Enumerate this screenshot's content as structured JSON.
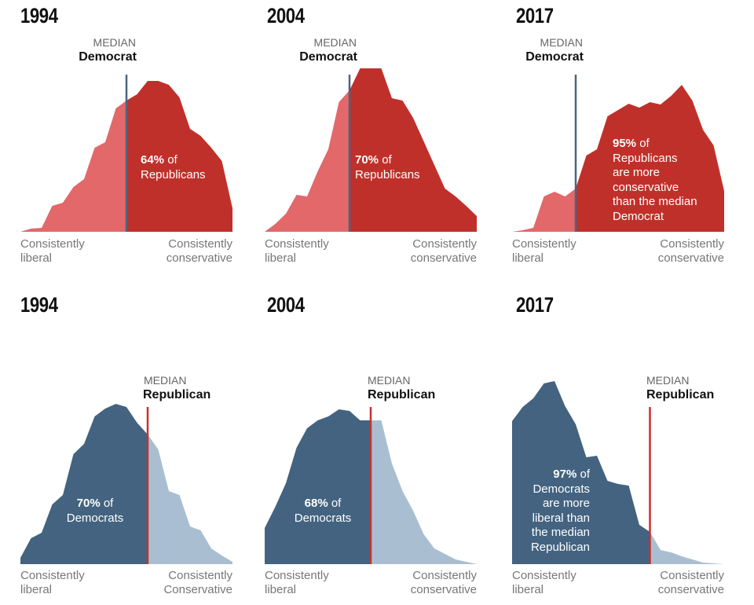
{
  "colors": {
    "rep_dark": "#c0302a",
    "rep_light": "#e2686a",
    "dem_dark": "#436380",
    "dem_light": "#a9bfd1",
    "median_dem_line": "#4a6580",
    "median_rep_line": "#c8312e"
  },
  "chart_data": [
    {
      "type": "area",
      "title": "1994",
      "group": "Republicans",
      "median_label": "MEDIAN",
      "median_party": "Democrat",
      "median_x": 0,
      "x": [
        -10,
        -9,
        -8,
        -7,
        -6,
        -5,
        -4,
        -3,
        -2,
        -1,
        0,
        1,
        2,
        3,
        4,
        5,
        6,
        7,
        8,
        9,
        10
      ],
      "y": [
        0,
        2,
        2.5,
        16.5,
        18.5,
        28.5,
        33.5,
        53.5,
        57,
        78.5,
        83.5,
        87.5,
        96,
        96,
        93.5,
        85.5,
        65.5,
        61,
        53.5,
        45,
        15
      ],
      "annotation_bold": "64%",
      "annotation": [
        "of",
        "Republicans"
      ],
      "xlabel_left": [
        "Consistently",
        "liberal"
      ],
      "xlabel_right": [
        "Consistently",
        "conservative"
      ]
    },
    {
      "type": "area",
      "title": "2004",
      "group": "Republicans",
      "median_label": "MEDIAN",
      "median_party": "Democrat",
      "median_x": -2,
      "x": [
        -10,
        -9,
        -8,
        -7,
        -6,
        -5,
        -4,
        -3,
        -2,
        -1,
        0,
        1,
        2,
        3,
        4,
        5,
        6,
        7,
        8,
        9,
        10
      ],
      "y": [
        0,
        5,
        11.5,
        23.5,
        22.5,
        38.5,
        52.5,
        82.5,
        90,
        104,
        104,
        104,
        85,
        83.5,
        72.5,
        57.5,
        42.5,
        27.5,
        22.5,
        16.5,
        10
      ],
      "annotation_bold": "70%",
      "annotation": [
        "of",
        "Republicans"
      ],
      "xlabel_left": [
        "Consistently",
        "liberal"
      ],
      "xlabel_right": [
        "Consistently",
        "conservative"
      ]
    },
    {
      "type": "area",
      "title": "2017",
      "group": "Republicans",
      "median_label": "MEDIAN",
      "median_party": "Democrat",
      "median_x": -4,
      "x": [
        -10,
        -9,
        -8,
        -7,
        -6,
        -5,
        -4,
        -3,
        -2,
        -1,
        0,
        1,
        2,
        3,
        4,
        5,
        6,
        7,
        8,
        9,
        10
      ],
      "y": [
        0,
        1,
        2.5,
        22.5,
        25.5,
        22.5,
        27.5,
        48.5,
        52.5,
        73.5,
        77.5,
        81.5,
        79,
        82.5,
        81,
        86.5,
        93.5,
        83.5,
        65,
        55,
        26
      ],
      "annotation_bold": "95%",
      "annotation": [
        "of",
        "Republicans",
        "are more",
        "conservative",
        "than the median",
        "Democrat"
      ],
      "xlabel_left": [
        "Consistently",
        "liberal"
      ],
      "xlabel_right": [
        "Consistently",
        "conservative"
      ]
    },
    {
      "type": "area",
      "title": "1994",
      "group": "Democrats",
      "median_label": "MEDIAN",
      "median_party": "Republican",
      "median_x": 2,
      "x": [
        -10,
        -9,
        -8,
        -7,
        -6,
        -5,
        -4,
        -3,
        -2,
        -1,
        0,
        1,
        2,
        3,
        4,
        5,
        6,
        7,
        8,
        9,
        10
      ],
      "y": [
        4,
        16.5,
        20,
        38,
        44,
        70,
        76.5,
        94,
        99,
        102,
        100,
        90,
        82.5,
        73,
        46.5,
        44,
        24,
        21.5,
        10,
        5.5,
        1.5
      ],
      "annotation_bold": "70%",
      "annotation": [
        "of",
        "Democrats"
      ],
      "xlabel_left": [
        "Consistently",
        "liberal"
      ],
      "xlabel_right": [
        "Consistently",
        "Conservative"
      ]
    },
    {
      "type": "area",
      "title": "2004",
      "group": "Democrats",
      "median_label": "MEDIAN",
      "median_party": "Republican",
      "median_x": 0,
      "x": [
        -10,
        -9,
        -8,
        -7,
        -6,
        -5,
        -4,
        -3,
        -2,
        -1,
        0,
        1,
        2,
        3,
        4,
        5,
        6,
        7,
        8,
        9,
        10
      ],
      "y": [
        23,
        36.5,
        51.5,
        74,
        86.5,
        91.5,
        94,
        98.5,
        97.5,
        91.5,
        91.5,
        91.5,
        64,
        46.5,
        34,
        19,
        10,
        6.5,
        3,
        1.5,
        0
      ],
      "annotation_bold": "68%",
      "annotation": [
        "of",
        "Democrats"
      ],
      "xlabel_left": [
        "Consistently",
        "liberal"
      ],
      "xlabel_right": [
        "Consistently",
        "conservative"
      ]
    },
    {
      "type": "area",
      "title": "2017",
      "group": "Democrats",
      "median_label": "MEDIAN",
      "median_party": "Republican",
      "median_x": 3,
      "x": [
        -10,
        -9,
        -8,
        -7,
        -6,
        -5,
        -4,
        -3,
        -2,
        -1,
        0,
        1,
        2,
        3,
        4,
        5,
        6,
        7,
        8,
        9,
        10
      ],
      "y": [
        91,
        100,
        105.5,
        115,
        116.5,
        100.5,
        89,
        68,
        69,
        53,
        51,
        50,
        25,
        20.5,
        9,
        7.5,
        5,
        3,
        1,
        0.5,
        0
      ],
      "annotation_bold": "97%",
      "annotation": [
        "of",
        "Democrats",
        "are more",
        "liberal than",
        "the median",
        "Republican"
      ],
      "xlabel_left": [
        "Consistently",
        "liberal"
      ],
      "xlabel_right": [
        "Consistently",
        "conservative"
      ]
    }
  ]
}
